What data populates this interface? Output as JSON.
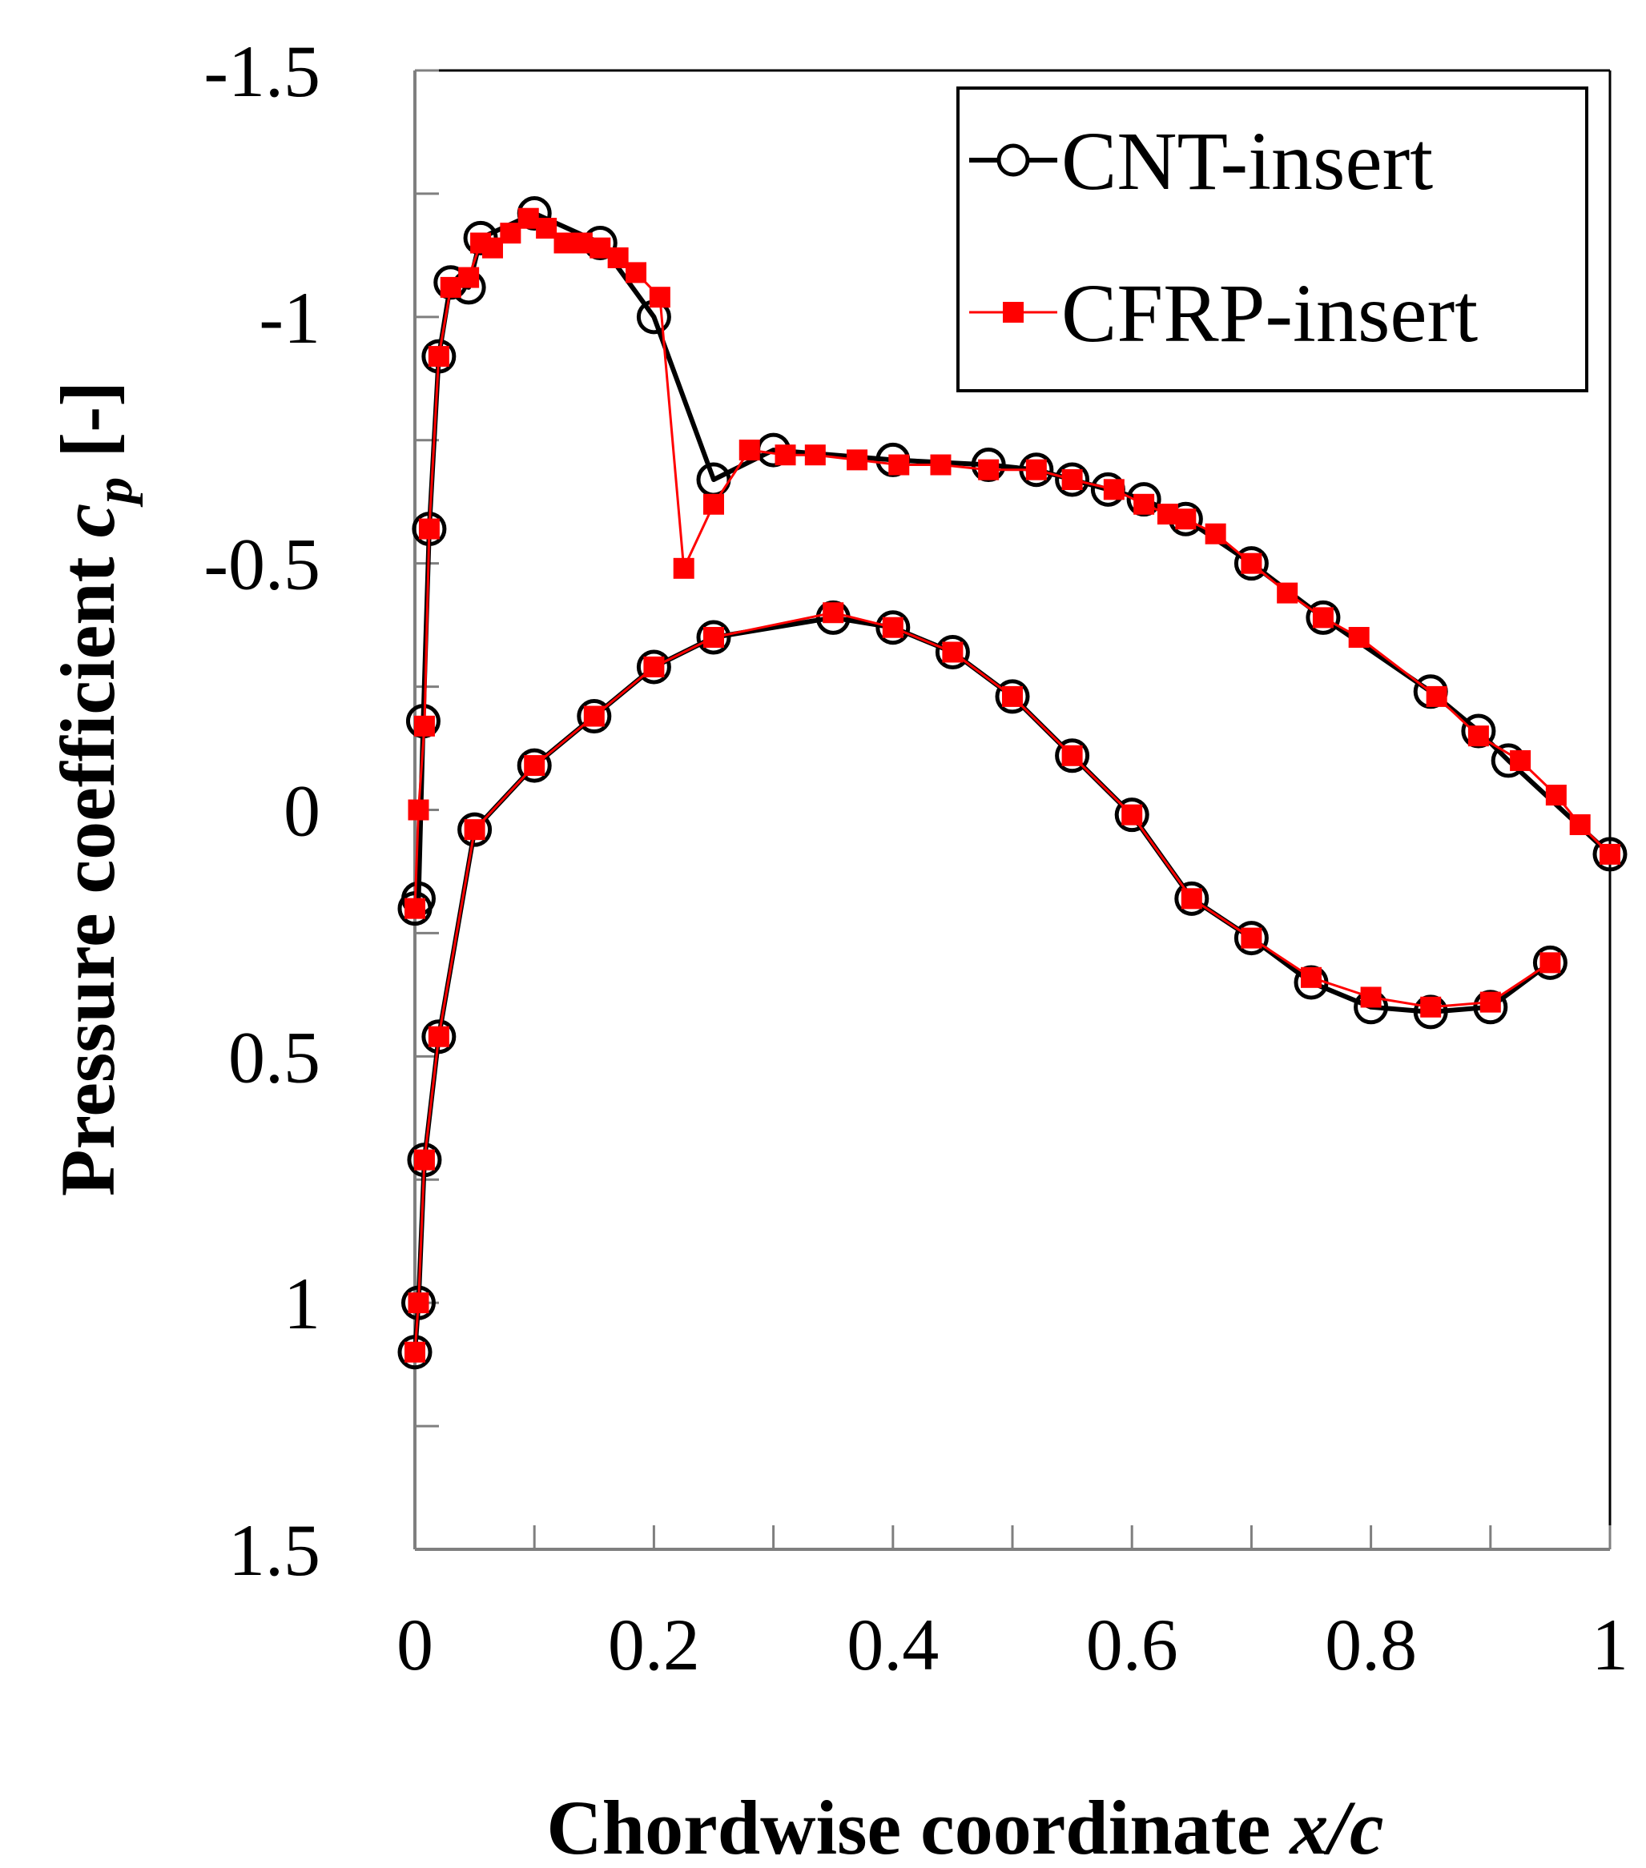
{
  "chart_data": {
    "type": "line",
    "title": "",
    "xlabel": "Chordwise coordinate x/c",
    "ylabel": "Pressure coefficient c_p [-]",
    "xlabel_parts": [
      "Chordwise coordinate ",
      "x/c"
    ],
    "ylabel_parts": [
      "Pressure coefficient ",
      "c",
      "p",
      " [-]"
    ],
    "xlim": [
      0,
      1
    ],
    "ylim": [
      -1.5,
      1.5
    ],
    "y_inverted": true,
    "x_ticks": [
      0,
      0.2,
      0.4,
      0.6,
      0.8,
      1
    ],
    "x_tick_labels": [
      "0",
      "0.2",
      "0.4",
      "0.6",
      "0.8",
      "1"
    ],
    "y_ticks": [
      -1.5,
      -1,
      -0.5,
      0,
      0.5,
      1,
      1.5
    ],
    "y_tick_labels": [
      "-1.5",
      "-1",
      "-0.5",
      "0",
      "0.5",
      "1",
      "1.5"
    ],
    "legend": {
      "position": "top-right",
      "entries": [
        "CNT-insert",
        "CFRP-insert"
      ]
    },
    "series": [
      {
        "name": "CNT-insert",
        "color": "#000000",
        "marker": "open-circle",
        "segments": [
          {
            "surface": "suction",
            "x": [
              0.0,
              0.003,
              0.007,
              0.012,
              0.02,
              0.03,
              0.045,
              0.055,
              0.1,
              0.155,
              0.2,
              0.25,
              0.3,
              0.4,
              0.48,
              0.52,
              0.55,
              0.58,
              0.61,
              0.645,
              0.7,
              0.76,
              0.85,
              0.89,
              0.915,
              1.0
            ],
            "y": [
              0.2,
              0.18,
              -0.18,
              -0.57,
              -0.92,
              -1.07,
              -1.06,
              -1.16,
              -1.21,
              -1.15,
              -1.0,
              -0.67,
              -0.73,
              -0.71,
              -0.7,
              -0.69,
              -0.67,
              -0.65,
              -0.63,
              -0.59,
              -0.5,
              -0.39,
              -0.24,
              -0.16,
              -0.1,
              0.09
            ]
          },
          {
            "surface": "pressure",
            "x": [
              0.0,
              0.003,
              0.008,
              0.02,
              0.05,
              0.1,
              0.15,
              0.2,
              0.25,
              0.35,
              0.4,
              0.45,
              0.5,
              0.55,
              0.6,
              0.65,
              0.7,
              0.75,
              0.8,
              0.85,
              0.9,
              0.95
            ],
            "y": [
              1.1,
              1.0,
              0.71,
              0.46,
              0.04,
              -0.09,
              -0.19,
              -0.29,
              -0.35,
              -0.39,
              -0.37,
              -0.32,
              -0.23,
              -0.11,
              0.01,
              0.18,
              0.26,
              0.35,
              0.4,
              0.41,
              0.4,
              0.31
            ]
          }
        ]
      },
      {
        "name": "CFRP-insert",
        "color": "#ff0000",
        "marker": "filled-square",
        "segments": [
          {
            "surface": "suction",
            "x": [
              0.0,
              0.003,
              0.008,
              0.012,
              0.02,
              0.03,
              0.045,
              0.055,
              0.065,
              0.08,
              0.095,
              0.11,
              0.125,
              0.14,
              0.155,
              0.17,
              0.185,
              0.205,
              0.225,
              0.25,
              0.28,
              0.31,
              0.335,
              0.37,
              0.405,
              0.44,
              0.48,
              0.52,
              0.55,
              0.585,
              0.61,
              0.63,
              0.645,
              0.67,
              0.7,
              0.73,
              0.76,
              0.79,
              0.855,
              0.89,
              0.925,
              0.955,
              0.975,
              1.0
            ],
            "y": [
              0.2,
              0.0,
              -0.17,
              -0.57,
              -0.92,
              -1.06,
              -1.08,
              -1.15,
              -1.14,
              -1.17,
              -1.2,
              -1.18,
              -1.15,
              -1.15,
              -1.14,
              -1.12,
              -1.09,
              -1.04,
              -0.49,
              -0.62,
              -0.73,
              -0.72,
              -0.72,
              -0.71,
              -0.7,
              -0.7,
              -0.69,
              -0.69,
              -0.67,
              -0.65,
              -0.62,
              -0.6,
              -0.59,
              -0.56,
              -0.5,
              -0.44,
              -0.39,
              -0.35,
              -0.23,
              -0.15,
              -0.1,
              -0.03,
              0.03,
              0.09
            ]
          },
          {
            "surface": "pressure",
            "x": [
              0.0,
              0.003,
              0.008,
              0.02,
              0.05,
              0.1,
              0.15,
              0.2,
              0.25,
              0.35,
              0.4,
              0.45,
              0.5,
              0.55,
              0.6,
              0.65,
              0.7,
              0.75,
              0.8,
              0.85,
              0.9,
              0.95
            ],
            "y": [
              1.1,
              1.0,
              0.71,
              0.46,
              0.04,
              -0.09,
              -0.19,
              -0.29,
              -0.35,
              -0.4,
              -0.37,
              -0.32,
              -0.23,
              -0.11,
              0.01,
              0.18,
              0.26,
              0.34,
              0.38,
              0.4,
              0.39,
              0.31
            ]
          }
        ]
      }
    ]
  }
}
